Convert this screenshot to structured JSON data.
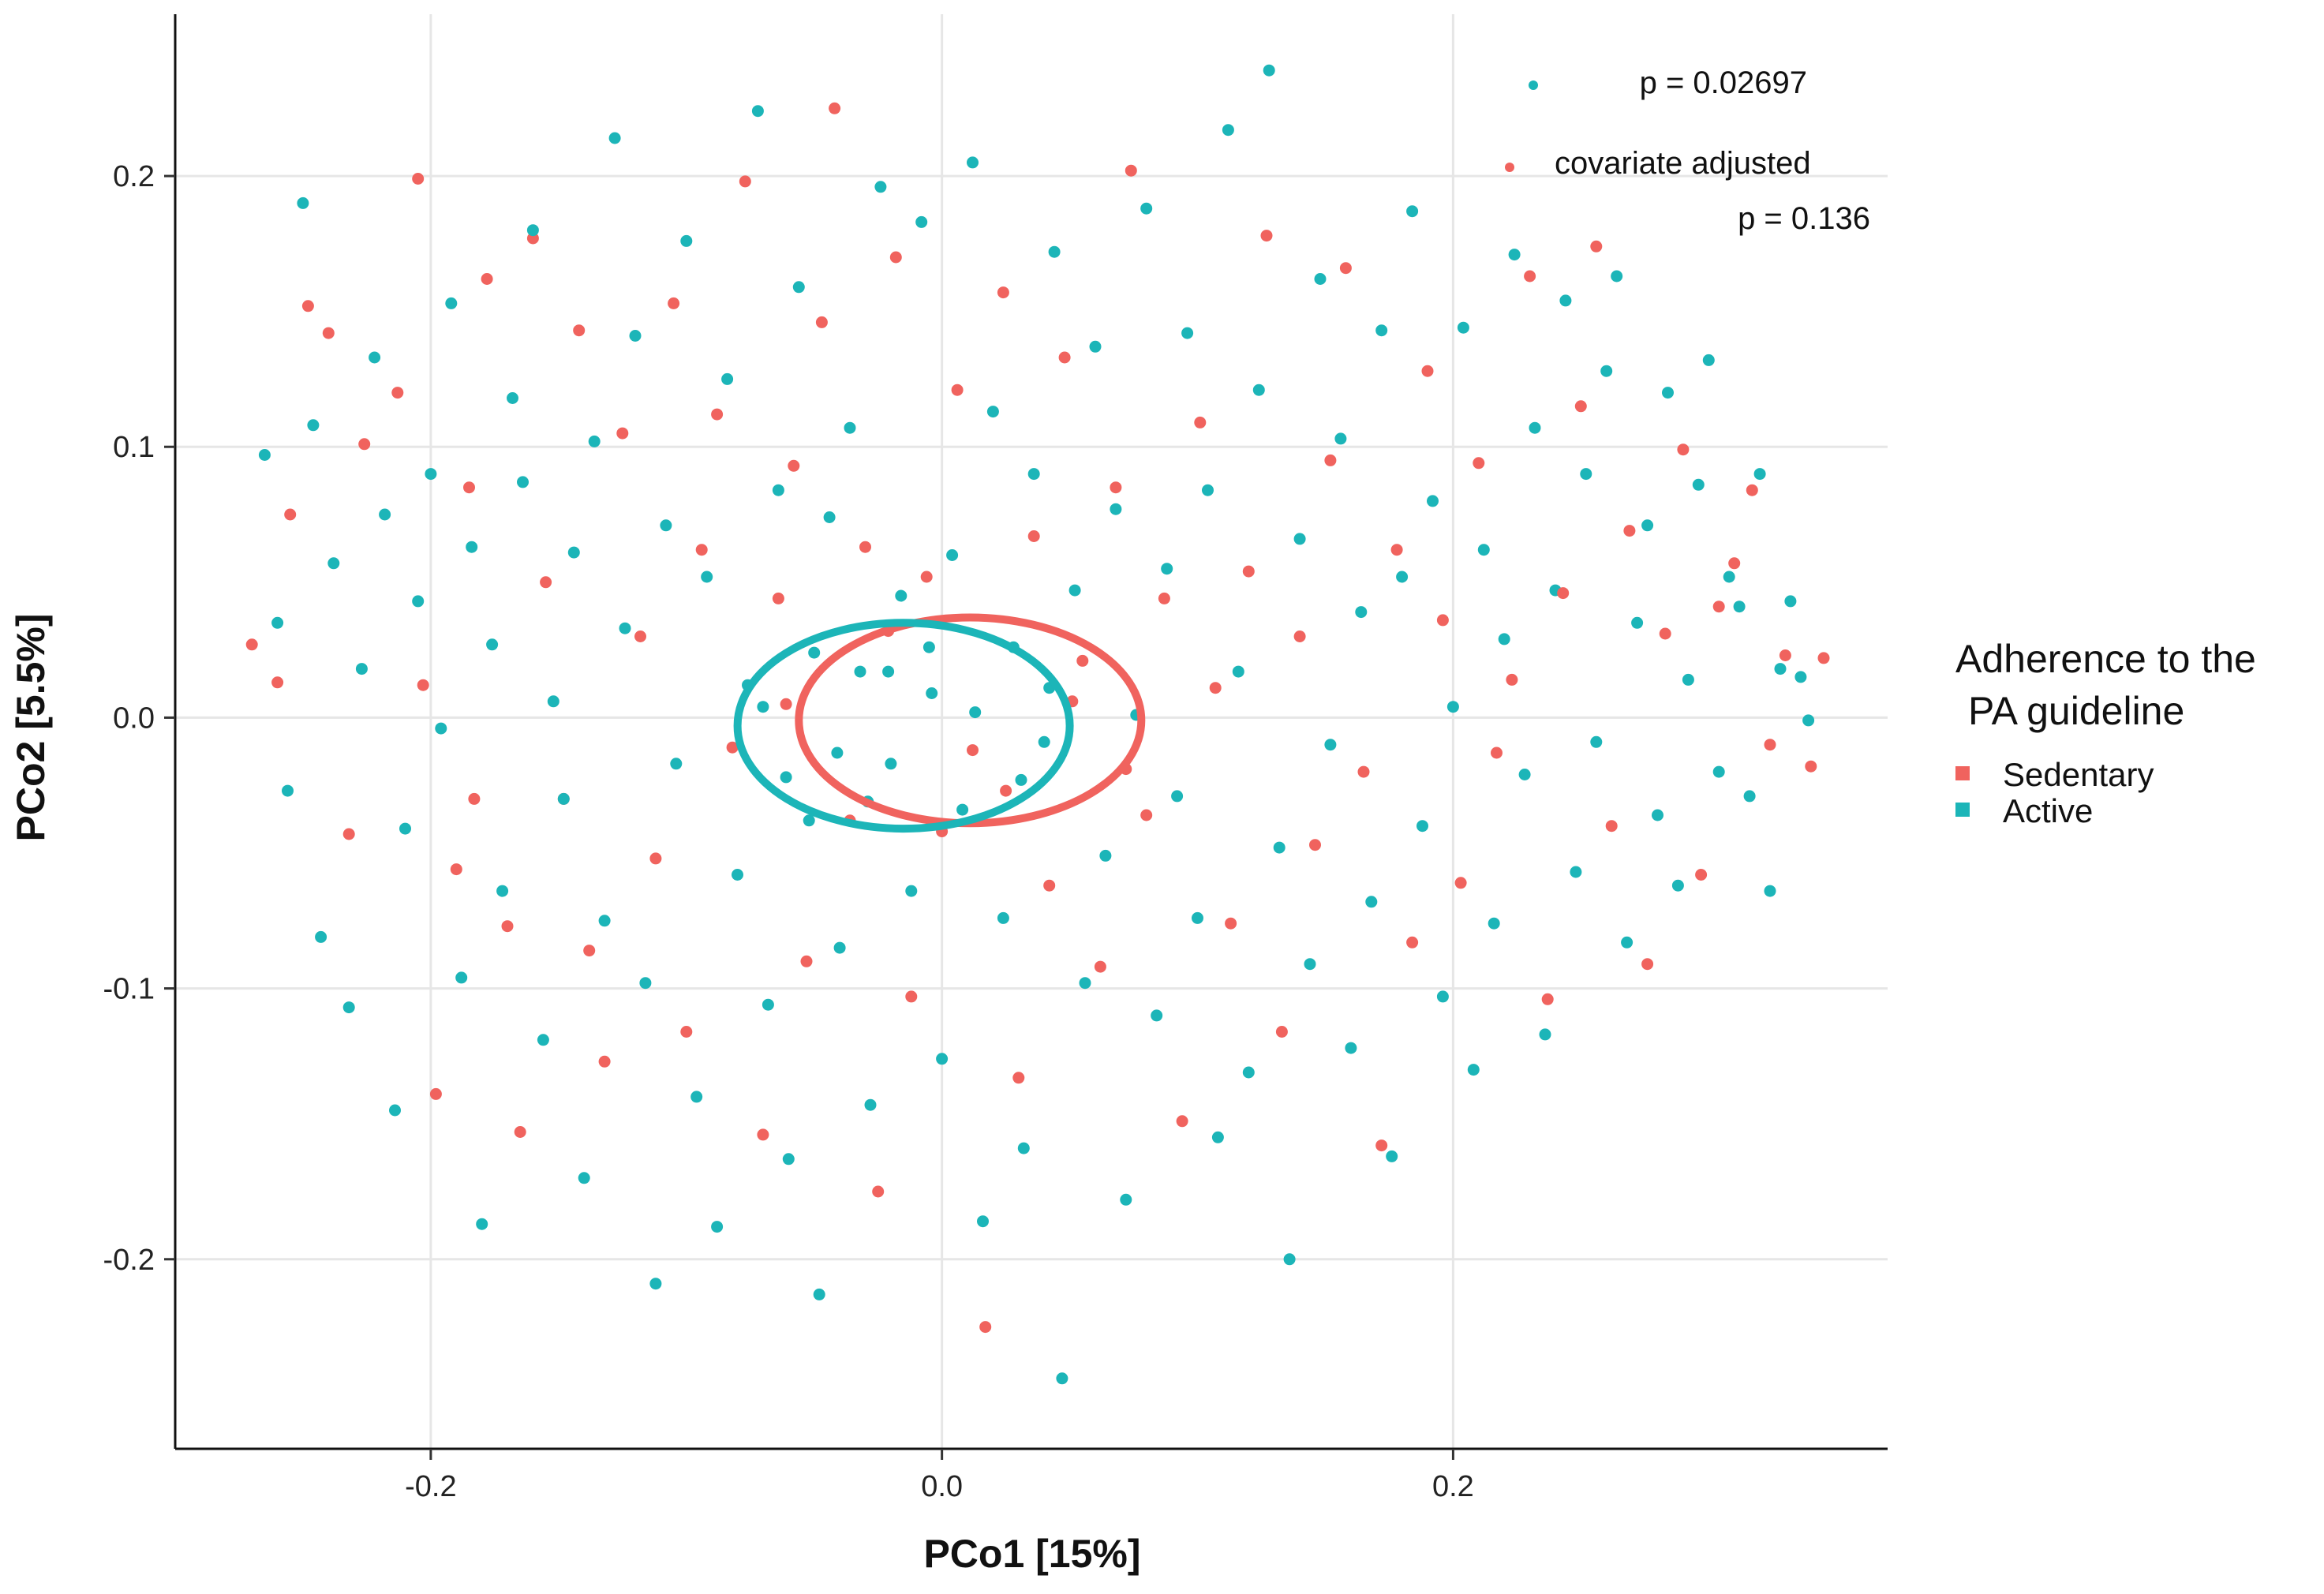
{
  "chart_data": {
    "type": "scatter",
    "xlabel": "PCo1 [15%]",
    "ylabel": "PCo2 [5.5%]",
    "xlim": [
      -0.3,
      0.37
    ],
    "ylim": [
      -0.27,
      0.265
    ],
    "xticks": [
      -0.2,
      0.0,
      0.2
    ],
    "yticks": [
      -0.2,
      -0.1,
      0.0,
      0.1,
      0.2
    ],
    "xtick_labels": [
      "-0.2",
      "0.0",
      "0.2"
    ],
    "ytick_labels": [
      "-0.2",
      "-0.1",
      "0.0",
      "0.1",
      "0.2"
    ],
    "grid": true,
    "legend": {
      "title_line1": "Adherence to the",
      "title_line2": "PA guideline",
      "placement": "right"
    },
    "annotations": {
      "p_value": "p = 0.02697",
      "adjusted_label": "covariate adjusted",
      "adjusted_p": "p = 0.136"
    },
    "series": [
      {
        "name": "Sedentary",
        "color": "#F0635E",
        "ellipse": {
          "cx": 0.011,
          "cy": -0.001,
          "rx": 0.067,
          "ry": 0.038
        },
        "points": [
          [
            -0.27,
            0.027
          ],
          [
            -0.26,
            0.013
          ],
          [
            -0.255,
            0.075
          ],
          [
            -0.248,
            0.152
          ],
          [
            -0.24,
            0.142
          ],
          [
            -0.232,
            -0.043
          ],
          [
            -0.226,
            0.101
          ],
          [
            -0.213,
            0.12
          ],
          [
            -0.205,
            0.199
          ],
          [
            -0.203,
            0.012
          ],
          [
            -0.198,
            -0.139
          ],
          [
            -0.19,
            -0.056
          ],
          [
            -0.185,
            0.085
          ],
          [
            -0.178,
            0.162
          ],
          [
            -0.17,
            -0.077
          ],
          [
            -0.165,
            -0.153
          ],
          [
            -0.16,
            0.177
          ],
          [
            -0.155,
            0.05
          ],
          [
            -0.148,
            -0.03
          ],
          [
            -0.142,
            0.143
          ],
          [
            -0.138,
            -0.086
          ],
          [
            -0.132,
            -0.127
          ],
          [
            -0.125,
            0.105
          ],
          [
            -0.118,
            0.03
          ],
          [
            -0.112,
            -0.052
          ],
          [
            -0.105,
            0.153
          ],
          [
            -0.1,
            -0.116
          ],
          [
            -0.094,
            0.062
          ],
          [
            -0.088,
            0.112
          ],
          [
            -0.082,
            -0.011
          ],
          [
            -0.077,
            0.198
          ],
          [
            -0.07,
            -0.154
          ],
          [
            -0.064,
            0.044
          ],
          [
            -0.058,
            0.093
          ],
          [
            -0.053,
            -0.09
          ],
          [
            -0.047,
            0.146
          ],
          [
            -0.042,
            0.225
          ],
          [
            -0.036,
            -0.038
          ],
          [
            -0.03,
            0.063
          ],
          [
            -0.025,
            -0.175
          ],
          [
            -0.018,
            0.17
          ],
          [
            -0.012,
            -0.103
          ],
          [
            -0.006,
            0.052
          ],
          [
            0.0,
            -0.042
          ],
          [
            0.006,
            0.121
          ],
          [
            0.012,
            -0.012
          ],
          [
            0.017,
            -0.225
          ],
          [
            0.024,
            0.157
          ],
          [
            0.03,
            -0.133
          ],
          [
            0.036,
            0.067
          ],
          [
            0.042,
            -0.062
          ],
          [
            0.048,
            0.133
          ],
          [
            0.055,
            0.021
          ],
          [
            0.062,
            -0.092
          ],
          [
            0.068,
            0.085
          ],
          [
            0.074,
            0.202
          ],
          [
            0.08,
            -0.036
          ],
          [
            0.087,
            0.044
          ],
          [
            0.094,
            -0.149
          ],
          [
            0.101,
            0.109
          ],
          [
            0.107,
            0.011
          ],
          [
            0.113,
            -0.076
          ],
          [
            0.12,
            0.054
          ],
          [
            0.127,
            0.178
          ],
          [
            0.133,
            -0.116
          ],
          [
            0.14,
            0.03
          ],
          [
            0.146,
            -0.047
          ],
          [
            0.152,
            0.095
          ],
          [
            0.158,
            0.166
          ],
          [
            0.165,
            -0.02
          ],
          [
            0.172,
            -0.158
          ],
          [
            0.178,
            0.062
          ],
          [
            0.184,
            -0.083
          ],
          [
            0.19,
            0.128
          ],
          [
            0.196,
            0.036
          ],
          [
            0.203,
            -0.061
          ],
          [
            0.21,
            0.094
          ],
          [
            0.217,
            -0.013
          ],
          [
            0.223,
            0.014
          ],
          [
            0.23,
            0.163
          ],
          [
            0.237,
            -0.104
          ],
          [
            0.243,
            0.046
          ],
          [
            0.25,
            0.115
          ],
          [
            0.256,
            0.174
          ],
          [
            0.262,
            -0.04
          ],
          [
            0.269,
            0.069
          ],
          [
            0.276,
            -0.091
          ],
          [
            0.283,
            0.031
          ],
          [
            0.29,
            0.099
          ],
          [
            0.297,
            -0.058
          ],
          [
            0.304,
            0.041
          ],
          [
            0.31,
            0.057
          ],
          [
            0.317,
            0.084
          ],
          [
            0.324,
            -0.01
          ],
          [
            0.33,
            0.023
          ],
          [
            0.34,
            -0.018
          ],
          [
            0.345,
            0.022
          ],
          [
            -0.183,
            -0.03
          ],
          [
            -0.061,
            0.005
          ],
          [
            0.025,
            -0.027
          ],
          [
            0.072,
            -0.019
          ],
          [
            -0.021,
            0.032
          ],
          [
            0.051,
            0.006
          ]
        ]
      },
      {
        "name": "Active",
        "color": "#1CB5B8",
        "ellipse": {
          "cx": -0.015,
          "cy": -0.003,
          "rx": 0.065,
          "ry": 0.038
        },
        "points": [
          [
            -0.265,
            0.097
          ],
          [
            -0.26,
            0.035
          ],
          [
            -0.256,
            -0.027
          ],
          [
            -0.25,
            0.19
          ],
          [
            -0.246,
            0.108
          ],
          [
            -0.243,
            -0.081
          ],
          [
            -0.238,
            0.057
          ],
          [
            -0.232,
            -0.107
          ],
          [
            -0.227,
            0.018
          ],
          [
            -0.222,
            0.133
          ],
          [
            -0.218,
            0.075
          ],
          [
            -0.214,
            -0.145
          ],
          [
            -0.21,
            -0.041
          ],
          [
            -0.205,
            0.043
          ],
          [
            -0.2,
            0.09
          ],
          [
            -0.196,
            -0.004
          ],
          [
            -0.192,
            0.153
          ],
          [
            -0.188,
            -0.096
          ],
          [
            -0.184,
            0.063
          ],
          [
            -0.18,
            -0.187
          ],
          [
            -0.176,
            0.027
          ],
          [
            -0.172,
            -0.064
          ],
          [
            -0.168,
            0.118
          ],
          [
            -0.164,
            0.087
          ],
          [
            -0.16,
            0.18
          ],
          [
            -0.156,
            -0.119
          ],
          [
            -0.152,
            0.006
          ],
          [
            -0.148,
            -0.03
          ],
          [
            -0.144,
            0.061
          ],
          [
            -0.14,
            -0.17
          ],
          [
            -0.136,
            0.102
          ],
          [
            -0.132,
            -0.075
          ],
          [
            -0.128,
            0.214
          ],
          [
            -0.124,
            0.033
          ],
          [
            -0.12,
            0.141
          ],
          [
            -0.116,
            -0.098
          ],
          [
            -0.112,
            -0.209
          ],
          [
            -0.108,
            0.071
          ],
          [
            -0.104,
            -0.017
          ],
          [
            -0.1,
            0.176
          ],
          [
            -0.096,
            -0.14
          ],
          [
            -0.092,
            0.052
          ],
          [
            -0.088,
            -0.188
          ],
          [
            -0.084,
            0.125
          ],
          [
            -0.08,
            -0.058
          ],
          [
            -0.076,
            0.012
          ],
          [
            -0.072,
            0.224
          ],
          [
            -0.068,
            -0.106
          ],
          [
            -0.064,
            0.084
          ],
          [
            -0.06,
            -0.163
          ],
          [
            -0.056,
            0.159
          ],
          [
            -0.052,
            -0.038
          ],
          [
            -0.048,
            -0.213
          ],
          [
            -0.044,
            0.074
          ],
          [
            -0.04,
            -0.085
          ],
          [
            -0.036,
            0.107
          ],
          [
            -0.032,
            0.017
          ],
          [
            -0.028,
            -0.143
          ],
          [
            -0.024,
            0.196
          ],
          [
            -0.02,
            -0.017
          ],
          [
            -0.016,
            0.045
          ],
          [
            -0.012,
            -0.064
          ],
          [
            -0.008,
            0.183
          ],
          [
            -0.004,
            0.009
          ],
          [
            0.0,
            -0.126
          ],
          [
            0.004,
            0.06
          ],
          [
            0.008,
            -0.034
          ],
          [
            0.012,
            0.205
          ],
          [
            0.016,
            -0.186
          ],
          [
            0.02,
            0.113
          ],
          [
            0.024,
            -0.074
          ],
          [
            0.028,
            0.026
          ],
          [
            0.032,
            -0.159
          ],
          [
            0.036,
            0.09
          ],
          [
            0.04,
            -0.009
          ],
          [
            0.044,
            0.172
          ],
          [
            0.047,
            -0.244
          ],
          [
            0.052,
            0.047
          ],
          [
            0.056,
            -0.098
          ],
          [
            0.06,
            0.137
          ],
          [
            0.064,
            -0.051
          ],
          [
            0.068,
            0.077
          ],
          [
            0.072,
            -0.178
          ],
          [
            0.076,
            0.001
          ],
          [
            0.08,
            0.188
          ],
          [
            0.084,
            -0.11
          ],
          [
            0.088,
            0.055
          ],
          [
            0.092,
            -0.029
          ],
          [
            0.096,
            0.142
          ],
          [
            0.1,
            -0.074
          ],
          [
            0.104,
            0.084
          ],
          [
            0.108,
            -0.155
          ],
          [
            0.112,
            0.217
          ],
          [
            0.116,
            0.017
          ],
          [
            0.12,
            -0.131
          ],
          [
            0.124,
            0.121
          ],
          [
            0.128,
            0.239
          ],
          [
            0.132,
            -0.048
          ],
          [
            0.136,
            -0.2
          ],
          [
            0.14,
            0.066
          ],
          [
            0.144,
            -0.091
          ],
          [
            0.148,
            0.162
          ],
          [
            0.152,
            -0.01
          ],
          [
            0.156,
            0.103
          ],
          [
            0.16,
            -0.122
          ],
          [
            0.164,
            0.039
          ],
          [
            0.168,
            -0.068
          ],
          [
            0.172,
            0.143
          ],
          [
            0.176,
            -0.162
          ],
          [
            0.18,
            0.052
          ],
          [
            0.184,
            0.187
          ],
          [
            0.188,
            -0.04
          ],
          [
            0.192,
            0.08
          ],
          [
            0.196,
            -0.103
          ],
          [
            0.2,
            0.004
          ],
          [
            0.204,
            0.144
          ],
          [
            0.208,
            -0.13
          ],
          [
            0.212,
            0.062
          ],
          [
            0.216,
            -0.076
          ],
          [
            0.22,
            0.029
          ],
          [
            0.224,
            0.171
          ],
          [
            0.228,
            -0.021
          ],
          [
            0.232,
            0.107
          ],
          [
            0.236,
            -0.117
          ],
          [
            0.24,
            0.047
          ],
          [
            0.244,
            0.154
          ],
          [
            0.248,
            -0.057
          ],
          [
            0.252,
            0.09
          ],
          [
            0.256,
            -0.009
          ],
          [
            0.26,
            0.128
          ],
          [
            0.264,
            0.163
          ],
          [
            0.268,
            -0.083
          ],
          [
            0.272,
            0.035
          ],
          [
            0.276,
            0.071
          ],
          [
            0.28,
            -0.036
          ],
          [
            0.284,
            0.12
          ],
          [
            0.288,
            -0.062
          ],
          [
            0.292,
            0.014
          ],
          [
            0.296,
            0.086
          ],
          [
            0.3,
            0.132
          ],
          [
            0.304,
            -0.02
          ],
          [
            0.308,
            0.052
          ],
          [
            0.312,
            0.041
          ],
          [
            0.316,
            -0.029
          ],
          [
            0.32,
            0.09
          ],
          [
            0.324,
            -0.064
          ],
          [
            0.328,
            0.018
          ],
          [
            0.332,
            0.043
          ],
          [
            0.336,
            0.015
          ],
          [
            0.339,
            -0.001
          ],
          [
            -0.021,
            0.017
          ],
          [
            -0.041,
            -0.013
          ],
          [
            -0.005,
            0.026
          ],
          [
            0.013,
            0.002
          ],
          [
            -0.061,
            -0.022
          ],
          [
            0.031,
            -0.023
          ],
          [
            -0.07,
            0.004
          ],
          [
            0.042,
            0.011
          ],
          [
            -0.029,
            -0.031
          ],
          [
            -0.05,
            0.024
          ]
        ]
      }
    ]
  }
}
